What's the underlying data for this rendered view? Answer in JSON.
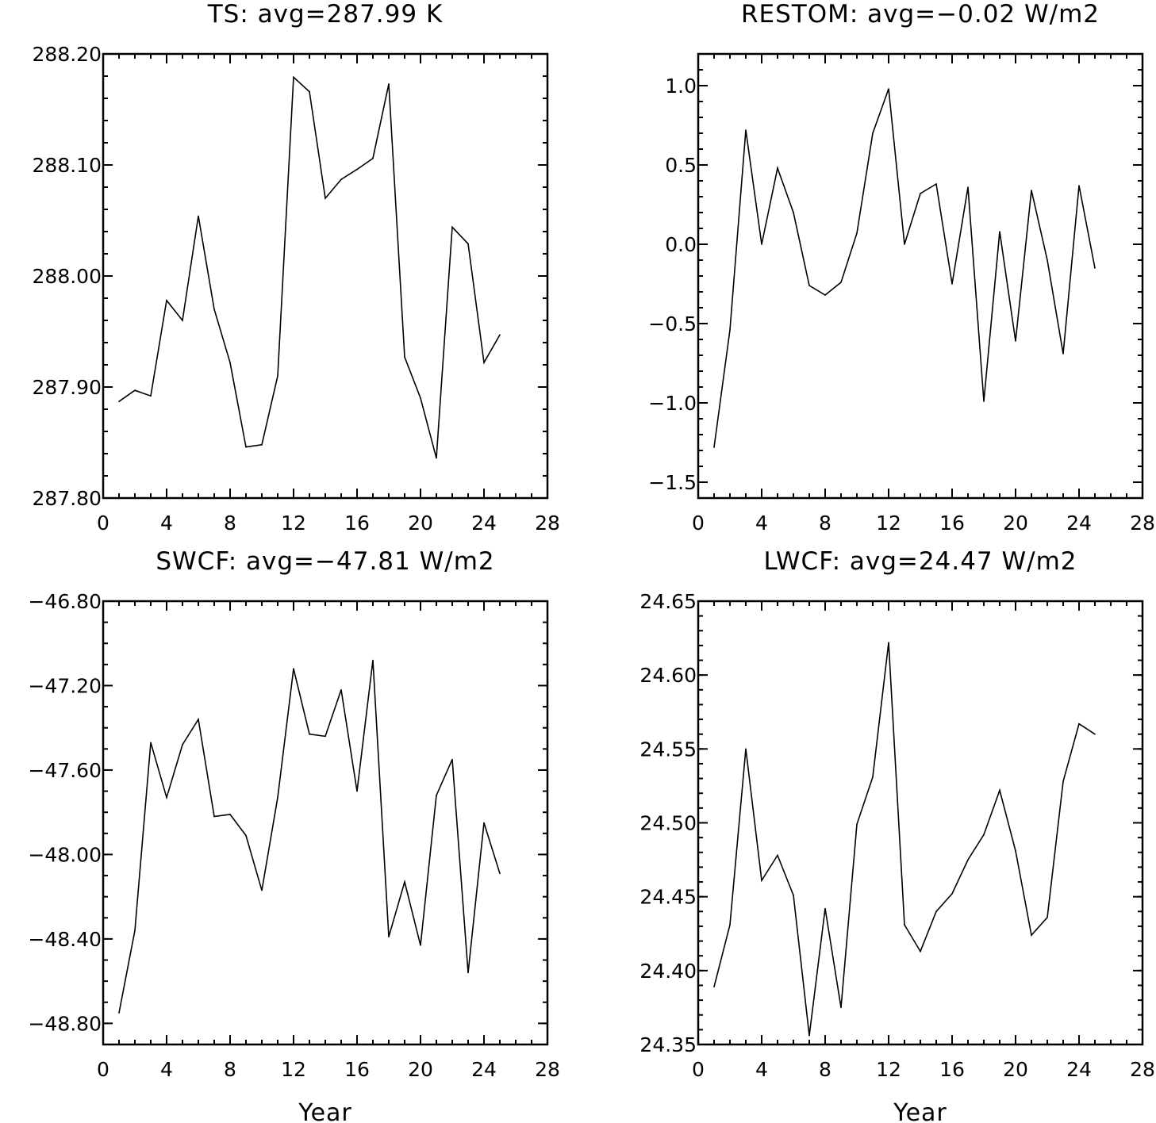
{
  "chart_data": [
    {
      "type": "line",
      "title": "TS: avg=287.99 K",
      "xlabel": "",
      "ylabel": "",
      "xlim": [
        0,
        28
      ],
      "ylim": [
        287.8,
        288.2
      ],
      "xticks": [
        0,
        4,
        8,
        12,
        16,
        20,
        24,
        28
      ],
      "xtick_labels": [
        "0",
        "4",
        "8",
        "12",
        "16",
        "20",
        "24",
        "28"
      ],
      "yticks": [
        287.8,
        287.9,
        288.0,
        288.1,
        288.2
      ],
      "ytick_labels": [
        "287.80",
        "287.90",
        "288.00",
        "288.10",
        "288.20"
      ],
      "ytick_minor_step": 0.02,
      "grid": false,
      "x": [
        1,
        2,
        3,
        4,
        5,
        6,
        7,
        8,
        9,
        10,
        11,
        12,
        13,
        14,
        15,
        16,
        17,
        18,
        19,
        20,
        21,
        22,
        23,
        24,
        25
      ],
      "y": [
        287.887,
        287.897,
        287.892,
        287.978,
        287.96,
        288.054,
        287.97,
        287.922,
        287.846,
        287.848,
        287.91,
        288.179,
        288.166,
        288.07,
        288.087,
        288.096,
        288.106,
        288.173,
        287.927,
        287.89,
        287.836,
        288.044,
        288.029,
        287.922,
        287.947
      ]
    },
    {
      "type": "line",
      "title": "RESTOM: avg=−0.02 W/m2",
      "xlabel": "",
      "ylabel": "",
      "xlim": [
        0,
        28
      ],
      "ylim": [
        -1.6,
        1.2
      ],
      "xticks": [
        0,
        4,
        8,
        12,
        16,
        20,
        24,
        28
      ],
      "xtick_labels": [
        "0",
        "4",
        "8",
        "12",
        "16",
        "20",
        "24",
        "28"
      ],
      "yticks": [
        -1.5,
        -1.0,
        -0.5,
        0.0,
        0.5,
        1.0
      ],
      "ytick_labels": [
        "−1.5",
        "−1.0",
        "−0.5",
        "0.0",
        "0.5",
        "1.0"
      ],
      "ytick_minor_step": 0.1,
      "grid": false,
      "x": [
        1,
        2,
        3,
        4,
        5,
        6,
        7,
        8,
        9,
        10,
        11,
        12,
        13,
        14,
        15,
        16,
        17,
        18,
        19,
        20,
        21,
        22,
        23,
        24,
        25
      ],
      "y": [
        -1.28,
        -0.54,
        0.72,
        0.0,
        0.48,
        0.2,
        -0.26,
        -0.32,
        -0.24,
        0.07,
        0.7,
        0.98,
        0.0,
        0.32,
        0.38,
        -0.25,
        0.36,
        -0.99,
        0.08,
        -0.61,
        0.34,
        -0.1,
        -0.69,
        0.37,
        -0.15
      ]
    },
    {
      "type": "line",
      "title": "SWCF: avg=−47.81 W/m2",
      "xlabel": "Year",
      "ylabel": "",
      "xlim": [
        0,
        28
      ],
      "ylim": [
        -48.9,
        -46.8
      ],
      "xticks": [
        0,
        4,
        8,
        12,
        16,
        20,
        24,
        28
      ],
      "xtick_labels": [
        "0",
        "4",
        "8",
        "12",
        "16",
        "20",
        "24",
        "28"
      ],
      "yticks": [
        -48.8,
        -48.4,
        -48.0,
        -47.6,
        -47.2,
        -46.8
      ],
      "ytick_labels": [
        "−48.80",
        "−48.40",
        "−48.00",
        "−47.60",
        "−47.20",
        "−46.80"
      ],
      "ytick_minor_step": 0.1,
      "grid": false,
      "x": [
        1,
        2,
        3,
        4,
        5,
        6,
        7,
        8,
        9,
        10,
        11,
        12,
        13,
        14,
        15,
        16,
        17,
        18,
        19,
        20,
        21,
        22,
        23,
        24,
        25
      ],
      "y": [
        -48.75,
        -48.36,
        -47.47,
        -47.73,
        -47.48,
        -47.36,
        -47.82,
        -47.81,
        -47.91,
        -48.17,
        -47.73,
        -47.12,
        -47.43,
        -47.44,
        -47.22,
        -47.7,
        -47.08,
        -48.39,
        -48.13,
        -48.43,
        -47.72,
        -47.55,
        -48.56,
        -47.85,
        -48.09
      ]
    },
    {
      "type": "line",
      "title": "LWCF: avg=24.47 W/m2",
      "xlabel": "Year",
      "ylabel": "",
      "xlim": [
        0,
        28
      ],
      "ylim": [
        24.35,
        24.65
      ],
      "xticks": [
        0,
        4,
        8,
        12,
        16,
        20,
        24,
        28
      ],
      "xtick_labels": [
        "0",
        "4",
        "8",
        "12",
        "16",
        "20",
        "24",
        "28"
      ],
      "yticks": [
        24.35,
        24.4,
        24.45,
        24.5,
        24.55,
        24.6,
        24.65
      ],
      "ytick_labels": [
        "24.35",
        "24.40",
        "24.45",
        "24.50",
        "24.55",
        "24.60",
        "24.65"
      ],
      "ytick_minor_step": 0.01,
      "grid": false,
      "x": [
        1,
        2,
        3,
        4,
        5,
        6,
        7,
        8,
        9,
        10,
        11,
        12,
        13,
        14,
        15,
        16,
        17,
        18,
        19,
        20,
        21,
        22,
        23,
        24,
        25
      ],
      "y": [
        24.389,
        24.431,
        24.55,
        24.461,
        24.478,
        24.451,
        24.356,
        24.442,
        24.375,
        24.499,
        24.531,
        24.622,
        24.431,
        24.413,
        24.44,
        24.452,
        24.475,
        24.492,
        24.522,
        24.481,
        24.424,
        24.436,
        24.528,
        24.567,
        24.56
      ]
    }
  ]
}
